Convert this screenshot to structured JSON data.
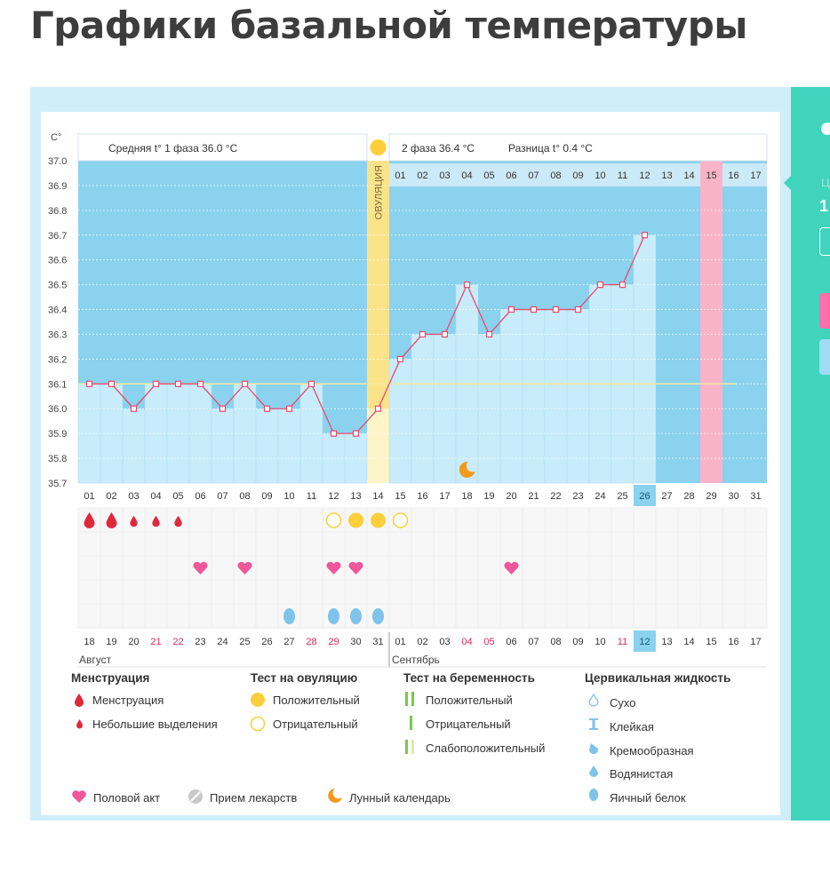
{
  "page": {
    "title": "Графики базальной температуры"
  },
  "chart_data": {
    "type": "line",
    "title": "Графики базальной температуры",
    "ylabel": "C°",
    "ylim": [
      35.7,
      37.0
    ],
    "y_ticks": [
      "37.0",
      "36.9",
      "36.8",
      "36.7",
      "36.6",
      "36.5",
      "36.4",
      "36.3",
      "36.2",
      "36.1",
      "36.0",
      "35.9",
      "35.8",
      "35.7"
    ],
    "x_dates": [
      "01",
      "02",
      "03",
      "04",
      "05",
      "06",
      "07",
      "08",
      "09",
      "10",
      "11",
      "12",
      "13",
      "14",
      "15",
      "16",
      "17",
      "18",
      "19",
      "20",
      "21",
      "22",
      "23",
      "24",
      "25",
      "26",
      "27",
      "28",
      "29",
      "30",
      "31"
    ],
    "highlight_date": "26",
    "cycle_days_top": [
      "01",
      "02",
      "03",
      "04",
      "05",
      "06",
      "07",
      "08",
      "09",
      "10",
      "11",
      "12",
      "13",
      "14",
      "15",
      "16",
      "17"
    ],
    "highlight_top_day": "15",
    "cycle_days_bottom": [
      "18",
      "19",
      "20",
      "21",
      "22",
      "23",
      "24",
      "25",
      "26",
      "27",
      "28",
      "29",
      "30",
      "31",
      "01",
      "02",
      "03",
      "04",
      "05",
      "06",
      "07",
      "08",
      "09",
      "10",
      "11",
      "12",
      "13",
      "14",
      "15",
      "16",
      "17"
    ],
    "red_bottom_days": [
      "21",
      "22",
      "28",
      "29",
      "04",
      "05",
      "11"
    ],
    "highlight_bottom_day": "12",
    "month_left": "Август",
    "month_right": "Сентябрь",
    "temperatures": [
      36.1,
      36.1,
      36.0,
      36.1,
      36.1,
      36.1,
      36.0,
      36.1,
      36.0,
      36.0,
      36.1,
      35.9,
      35.9,
      36.0,
      36.2,
      36.3,
      36.3,
      36.5,
      36.3,
      36.4,
      36.4,
      36.4,
      36.4,
      36.5,
      36.5,
      36.7
    ],
    "coverline": 36.1,
    "ovulation_day": "14",
    "ovulation_label": "ОВУЛЯЦИЯ",
    "phase1_label": "Средняя t° 1 фаза 36.0 °С",
    "phase2_label": "2 фаза 36.4 °С",
    "diff_label": "Разница t° 0.4 °С",
    "period_end_day": "29",
    "menstruation": [
      {
        "day": "01",
        "kind": "full"
      },
      {
        "day": "02",
        "kind": "full"
      },
      {
        "day": "03",
        "kind": "light"
      },
      {
        "day": "04",
        "kind": "light"
      },
      {
        "day": "05",
        "kind": "light"
      }
    ],
    "ovulation_tests": [
      {
        "day": "12",
        "result": "negative"
      },
      {
        "day": "13",
        "result": "positive"
      },
      {
        "day": "14",
        "result": "positive"
      },
      {
        "day": "15",
        "result": "negative"
      }
    ],
    "intercourse_days": [
      "06",
      "08",
      "12",
      "13",
      "20"
    ],
    "cervical_egg_white_days": [
      "10",
      "12",
      "13",
      "14"
    ],
    "moon_day": "18"
  },
  "legend": {
    "menstruation": {
      "heading": "Менструация",
      "full": "Менструация",
      "light": "Небольшие выделения"
    },
    "ovulation_test": {
      "heading": "Тест на овуляцию",
      "positive": "Положительный",
      "negative": "Отрицательный"
    },
    "pregnancy_test": {
      "heading": "Тест на беременность",
      "positive": "Положительный",
      "negative": "Отрицательный",
      "faint": "Слабоположительный"
    },
    "cervical": {
      "heading": "Цервикальная жидкость",
      "dry": "Сухо",
      "sticky": "Клейкая",
      "creamy": "Кремообразная",
      "watery": "Водянистая",
      "egg_white": "Яичный белок"
    },
    "other": {
      "intercourse": "Половой акт",
      "medication": "Прием лекарств",
      "lunar": "Лунный календарь"
    }
  },
  "sidebar": {
    "label_cut": "Ц",
    "value_cut": "1"
  },
  "colors": {
    "bg_blue": "#8ad2ee",
    "bar_fill": "#c8ecf9",
    "line": "#e84a6f",
    "ovulation": "#fbe38a",
    "drop_red": "#e0283c",
    "heart": "#f0569a",
    "cervical_blue": "#7ec3ea",
    "teal": "#40d4bd"
  }
}
